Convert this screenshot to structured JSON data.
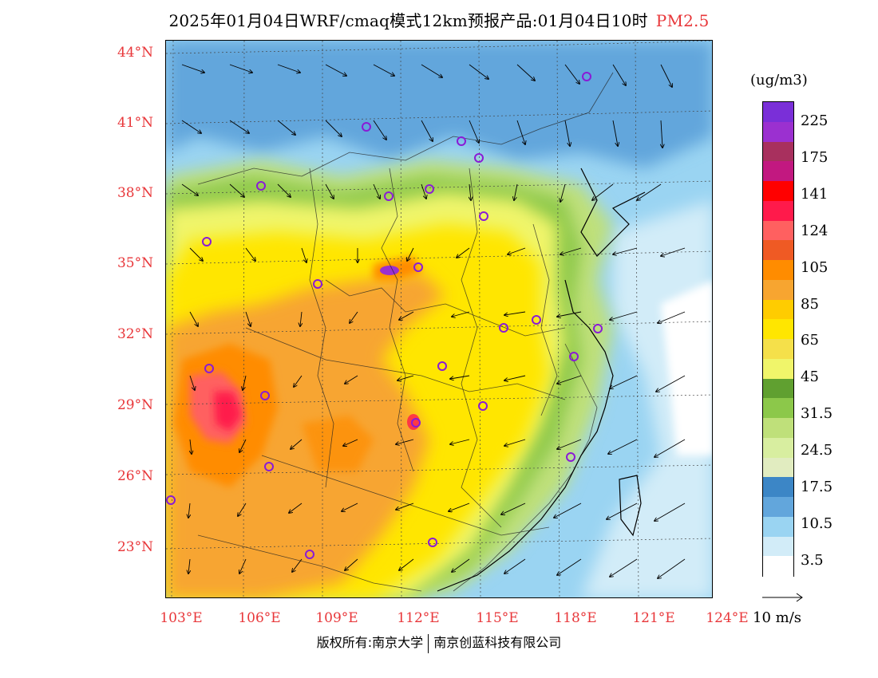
{
  "title": {
    "text": "2025年01月04日WRF/cmaq模式12km预报产品:01月04日10时",
    "pollutant": "PM2.5",
    "pollutant_color": "#e8373a"
  },
  "lat_labels": [
    "44°N",
    "41°N",
    "38°N",
    "35°N",
    "32°N",
    "29°N",
    "26°N",
    "23°N"
  ],
  "lon_labels": [
    "103°E",
    "106°E",
    "109°E",
    "112°E",
    "115°E",
    "118°E",
    "121°E",
    "124°E"
  ],
  "legend": {
    "unit": "(ug/m3)",
    "labels": [
      "225",
      "175",
      "141",
      "124",
      "105",
      "85",
      "65",
      "45",
      "31.5",
      "24.5",
      "17.5",
      "10.5",
      "3.5"
    ],
    "colors_top_to_bottom": [
      "#7a2fd8",
      "#9b30d0",
      "#a8305e",
      "#c21880",
      "#ff0000",
      "#ff1a4b",
      "#ff6060",
      "#ef5a24",
      "#ff8c00",
      "#f7a530",
      "#ffcc00",
      "#ffe600",
      "#f5e04a",
      "#f0f56a",
      "#60a030",
      "#8cc84a",
      "#bfe07a",
      "#d8eea0",
      "#e1ecc0",
      "#3c86c6",
      "#62a6dc",
      "#9ad4f2",
      "#d2ecf8",
      "#ffffff"
    ]
  },
  "wind_scale": "10 m/s",
  "footer": {
    "left": "版权所有:南京大学",
    "right": "南京创蓝科技有限公司"
  }
}
